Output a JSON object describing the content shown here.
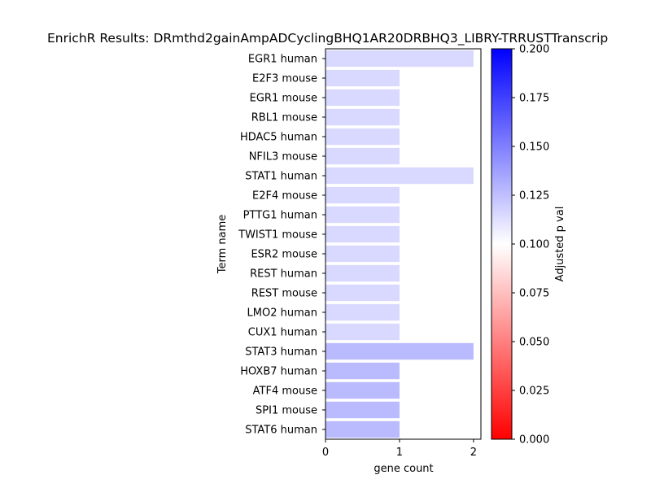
{
  "chart_data": {
    "type": "bar",
    "orientation": "horizontal",
    "title": "EnrichR Results: DRmthd2gainAmpADCyclingBHQ1AR20DRBHQ3_LIBRY-TRRUSTTranscrip",
    "xlabel": "gene count",
    "ylabel": "Term name",
    "xlim": [
      0,
      2.1
    ],
    "x_ticks": [
      "0",
      "1",
      "2"
    ],
    "grid": false,
    "categories": [
      "EGR1 human",
      "E2F3 mouse",
      "EGR1 mouse",
      "RBL1 mouse",
      "HDAC5 human",
      "NFIL3 mouse",
      "STAT1 human",
      "E2F4 mouse",
      "PTTG1 human",
      "TWIST1 mouse",
      "ESR2 mouse",
      "REST human",
      "REST mouse",
      "LMO2 human",
      "CUX1 human",
      "STAT3 human",
      "HOXB7 human",
      "ATF4 mouse",
      "SPI1 mouse",
      "STAT6 human"
    ],
    "values": [
      2,
      1,
      1,
      1,
      1,
      1,
      2,
      1,
      1,
      1,
      1,
      1,
      1,
      1,
      1,
      2,
      1,
      1,
      1,
      1
    ],
    "adjusted_p": [
      0.115,
      0.115,
      0.115,
      0.115,
      0.115,
      0.115,
      0.115,
      0.115,
      0.115,
      0.115,
      0.115,
      0.115,
      0.115,
      0.115,
      0.115,
      0.127,
      0.127,
      0.127,
      0.127,
      0.127
    ],
    "colorbar": {
      "label": "Adjusted p val",
      "range": [
        0.0,
        0.2
      ],
      "ticks": [
        "0.000",
        "0.025",
        "0.050",
        "0.075",
        "0.100",
        "0.125",
        "0.150",
        "0.175",
        "0.200"
      ],
      "colormap": [
        "#ff0000",
        "#ffffff",
        "#0000ff"
      ]
    }
  }
}
